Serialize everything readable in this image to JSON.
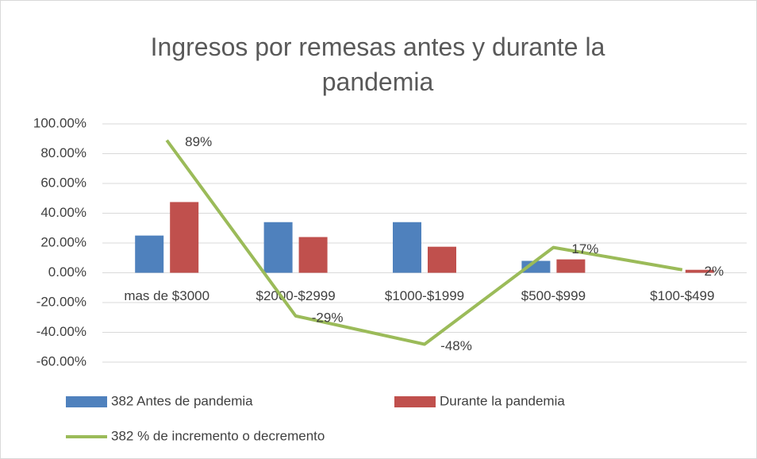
{
  "chart_data": {
    "type": "bar",
    "title": "Ingresos por remesas antes y durante la pandemia",
    "categories": [
      "mas de $3000",
      "$2000-$2999",
      "$1000-$1999",
      "$500-$999",
      "$100-$499"
    ],
    "series": [
      {
        "name": "382 Antes de pandemia",
        "type": "bar",
        "color": "#4f81bd",
        "values": [
          25,
          34,
          34,
          8,
          0
        ]
      },
      {
        "name": "Durante la pandemia",
        "type": "bar",
        "color": "#c0504d",
        "values": [
          47.5,
          24,
          17.5,
          9,
          2
        ]
      },
      {
        "name": "382 % de incremento o decremento",
        "type": "line",
        "color": "#9bbb59",
        "values": [
          89,
          -29,
          -48,
          17,
          2
        ],
        "value_labels": [
          "89%",
          "-29%",
          "-48%",
          "17%",
          "2%"
        ]
      }
    ],
    "ylim": [
      -60,
      100
    ],
    "yticks": [
      {
        "value": -60,
        "label": "-60.00%"
      },
      {
        "value": -40,
        "label": "-40.00%"
      },
      {
        "value": -20,
        "label": "-20.00%"
      },
      {
        "value": 0,
        "label": "0.00%"
      },
      {
        "value": 20,
        "label": "20.00%"
      },
      {
        "value": 40,
        "label": "40.00%"
      },
      {
        "value": 60,
        "label": "60.00%"
      },
      {
        "value": 80,
        "label": "80.00%"
      },
      {
        "value": 100,
        "label": "100.00%"
      }
    ],
    "grid": true,
    "legend": "bottom"
  }
}
